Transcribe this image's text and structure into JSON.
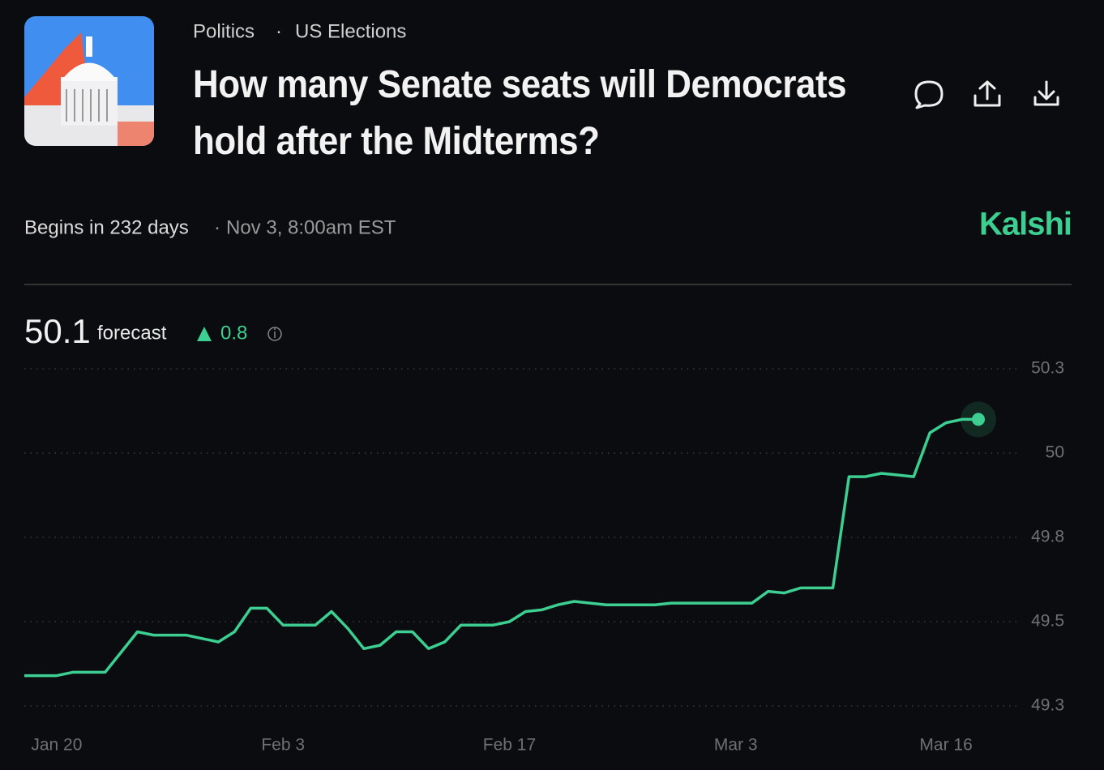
{
  "header": {
    "breadcrumb": [
      "Politics",
      "US Elections"
    ],
    "title": "How many Senate seats will Democrats hold after the Midterms?",
    "status": "Begins in 232 days",
    "date": "Nov 3, 8:00am EST",
    "brand": "Kalshi"
  },
  "forecast": {
    "value": 50.1,
    "label": "forecast",
    "change": 0.8
  },
  "chart_data": {
    "type": "line",
    "color": "#3ccf91",
    "grid": true,
    "x": [
      "Jan 18",
      "Jan 19",
      "Jan 20",
      "Jan 21",
      "Jan 22",
      "Jan 23",
      "Jan 24",
      "Jan 25",
      "Jan 26",
      "Jan 27",
      "Jan 28",
      "Jan 29",
      "Jan 30",
      "Jan 31",
      "Feb 1",
      "Feb 2",
      "Feb 3",
      "Feb 4",
      "Feb 5",
      "Feb 6",
      "Feb 7",
      "Feb 8",
      "Feb 9",
      "Feb 10",
      "Feb 11",
      "Feb 12",
      "Feb 13",
      "Feb 14",
      "Feb 15",
      "Feb 16",
      "Feb 17",
      "Feb 18",
      "Feb 19",
      "Feb 20",
      "Feb 21",
      "Feb 22",
      "Feb 23",
      "Feb 24",
      "Feb 25",
      "Feb 26",
      "Feb 27",
      "Feb 28",
      "Mar 1",
      "Mar 2",
      "Mar 3",
      "Mar 4",
      "Mar 5",
      "Mar 6",
      "Mar 7",
      "Mar 8",
      "Mar 9",
      "Mar 10",
      "Mar 11",
      "Mar 12",
      "Mar 13",
      "Mar 14",
      "Mar 15",
      "Mar 16",
      "Mar 17",
      "Mar 18"
    ],
    "values": [
      49.34,
      49.34,
      49.34,
      49.35,
      49.35,
      49.35,
      49.41,
      49.47,
      49.46,
      49.46,
      49.46,
      49.45,
      49.44,
      49.47,
      49.54,
      49.54,
      49.49,
      49.49,
      49.49,
      49.53,
      49.48,
      49.42,
      49.43,
      49.47,
      49.47,
      49.42,
      49.44,
      49.49,
      49.49,
      49.49,
      49.5,
      49.53,
      49.535,
      49.55,
      49.56,
      49.555,
      49.55,
      49.55,
      49.55,
      49.55,
      49.555,
      49.555,
      49.555,
      49.555,
      49.555,
      49.555,
      49.59,
      49.585,
      49.6,
      49.6,
      49.6,
      49.93,
      49.93,
      49.94,
      49.935,
      49.93,
      50.06,
      50.09,
      50.1,
      50.1
    ],
    "xticks": [
      "Jan 20",
      "Feb 3",
      "Feb 17",
      "Mar 3",
      "Mar 16"
    ],
    "ylim": [
      49.25,
      50.25
    ],
    "yticks": [
      {
        "value": 50.25,
        "label": "50.3"
      },
      50,
      {
        "value": 49.75,
        "label": "49.8"
      },
      49.5,
      {
        "value": 49.25,
        "label": "49.3"
      }
    ]
  }
}
